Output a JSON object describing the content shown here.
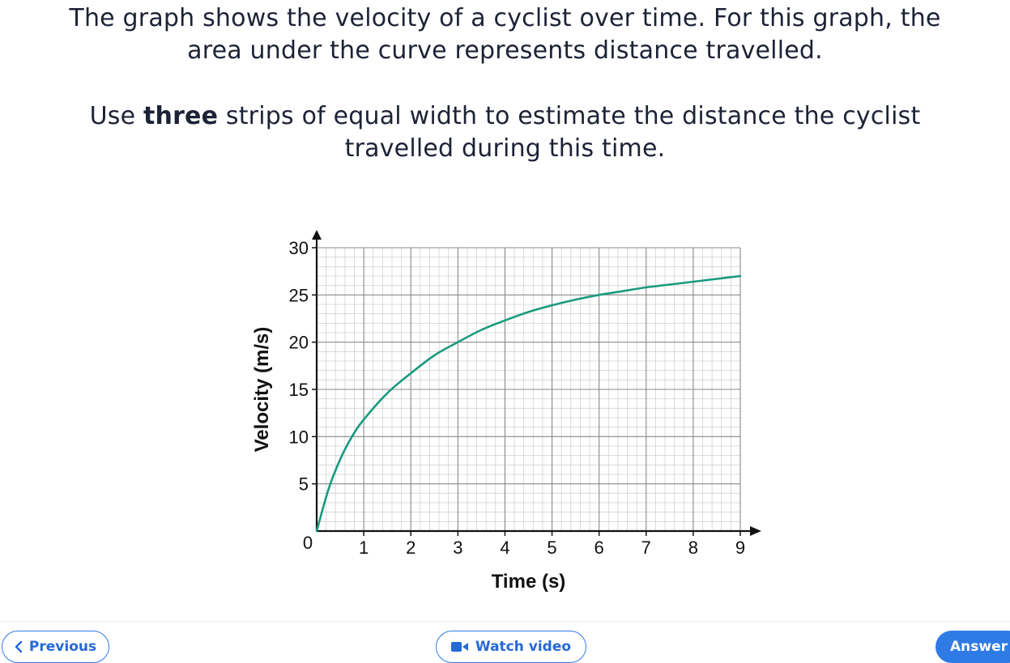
{
  "question": {
    "line1": "The graph shows the velocity of a cyclist over time. For this graph, the",
    "line2": "area under the curve represents distance travelled.",
    "line3_pre": "Use ",
    "line3_bold": "three",
    "line3_post": " strips of equal width to estimate the distance the cyclist",
    "line4": "travelled during this time."
  },
  "chart_data": {
    "type": "line",
    "xlabel": "Time (s)",
    "ylabel": "Velocity (m/s)",
    "xlim": [
      0,
      9
    ],
    "ylim": [
      0,
      30
    ],
    "x_ticks": [
      1,
      2,
      3,
      4,
      5,
      6,
      7,
      8,
      9
    ],
    "y_ticks": [
      5,
      10,
      15,
      20,
      25,
      30
    ],
    "origin_label": "0",
    "grid": true,
    "minor_grid_per_unit_x": 5,
    "minor_grid_per_unit_y": 5,
    "line_color": "#1a9a7f",
    "series": [
      {
        "x": [
          0,
          0.25,
          0.5,
          0.75,
          1,
          1.5,
          2,
          2.5,
          3,
          3.5,
          4,
          4.5,
          5,
          5.5,
          6,
          6.5,
          7,
          7.5,
          8,
          8.5,
          9
        ],
        "values": [
          0,
          4.4,
          7.6,
          10,
          11.8,
          14.6,
          16.7,
          18.6,
          20,
          21.3,
          22.3,
          23.2,
          23.9,
          24.5,
          25,
          25.4,
          25.8,
          26.1,
          26.4,
          26.7,
          27
        ]
      }
    ]
  },
  "nav": {
    "previous_label": "Previous",
    "watch_video_label": "Watch video",
    "answer_label": "Answer",
    "previous_icon": "chevron-left-icon",
    "video_icon": "video-camera-icon",
    "accent_color": "#2f7be5"
  }
}
